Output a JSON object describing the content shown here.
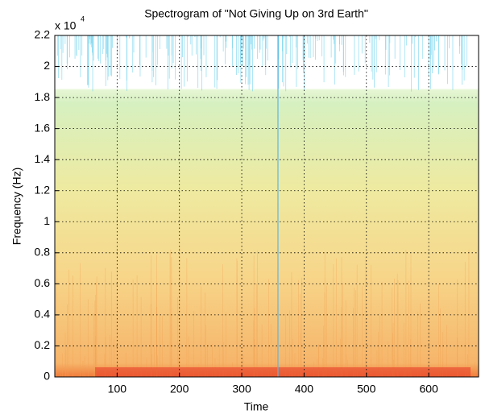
{
  "chart_data": {
    "type": "spectrogram",
    "title": "Spectrogram of \"Not Giving Up on 3rd Earth\"",
    "x_label": "Time",
    "y_label": "Frequency (Hz)",
    "y_multiplier": "x 10",
    "y_multiplier_exponent": "4",
    "xlim": [
      0,
      680
    ],
    "xticks": [
      100,
      200,
      300,
      400,
      500,
      600
    ],
    "ylim": [
      0,
      2.2
    ],
    "yticks": [
      0,
      0.2,
      0.4,
      0.6,
      0.8,
      1,
      1.2,
      1.4,
      1.6,
      1.8,
      2,
      2.2
    ],
    "grid": true
  }
}
